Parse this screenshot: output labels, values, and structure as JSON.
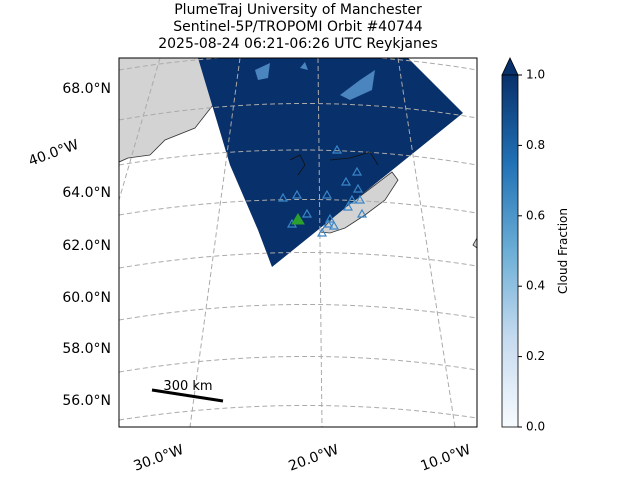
{
  "header": {
    "title_lines": [
      "PlumeTraj    University of Manchester",
      "Sentinel-5P/TROPOMI Orbit #40744",
      "2025-08-24   06:21-06:26 UTC   Reykjanes"
    ]
  },
  "map": {
    "lat_labels": [
      "68.0°N",
      "64.0°N",
      "62.0°N",
      "60.0°N",
      "58.0°N",
      "56.0°N"
    ],
    "lon_labels": [
      "40.0°W",
      "30.0°W",
      "20.0°W",
      "10.0°W"
    ],
    "scale_bar": "300 km"
  },
  "colorbar": {
    "label": "Cloud Fraction",
    "lim": [
      0,
      1
    ],
    "ticks": [
      {
        "value": 0,
        "label": "0.0"
      },
      {
        "value": 0.2,
        "label": "0.2"
      },
      {
        "value": 0.4,
        "label": "0.4"
      },
      {
        "value": 0.6,
        "label": "0.6"
      },
      {
        "value": 0.8,
        "label": "0.8"
      },
      {
        "value": 1,
        "label": "1.0"
      }
    ]
  }
}
